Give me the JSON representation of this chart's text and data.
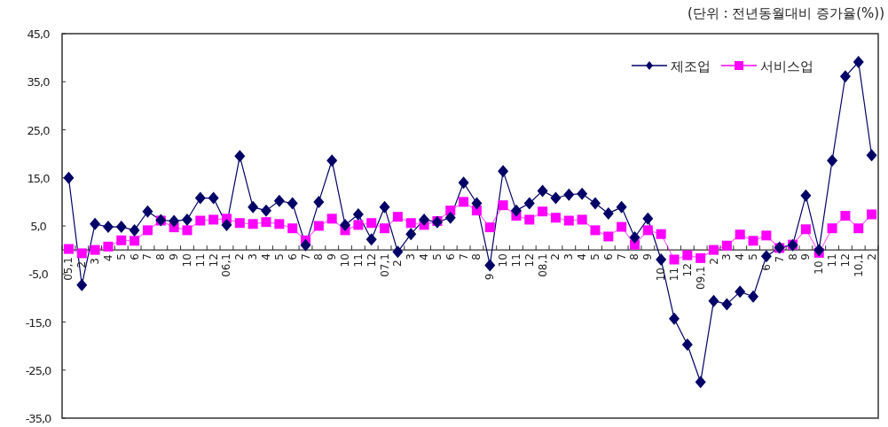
{
  "chart_data": {
    "type": "line",
    "annotations": [
      "(단위 : 전년동월대비  증가율(%))"
    ],
    "categories": [
      "05,1",
      "2",
      "3",
      "4",
      "5",
      "6",
      "7",
      "8",
      "9",
      "10",
      "11",
      "12",
      "06,1",
      "2",
      "3",
      "4",
      "5",
      "6",
      "7",
      "8",
      "9",
      "10",
      "11",
      "12",
      "07,1",
      "2",
      "3",
      "4",
      "5",
      "6",
      "7",
      "8",
      "9",
      "10",
      "11",
      "12",
      "08,1",
      "2",
      "3",
      "4",
      "5",
      "6",
      "7",
      "8",
      "9",
      "10",
      "11",
      "12",
      "09,1",
      "2",
      "3",
      "4",
      "5",
      "6",
      "7",
      "8",
      "9",
      "10",
      "11",
      "12",
      "10,1",
      "2"
    ],
    "series": [
      {
        "name": "제조업",
        "color": "#000066",
        "marker": "diamond",
        "values": [
          15.0,
          -7.3,
          5.4,
          4.8,
          4.8,
          4.1,
          8.0,
          6.2,
          6.0,
          6.3,
          10.8,
          10.8,
          5.2,
          19.5,
          8.9,
          8.2,
          10.2,
          9.7,
          1.0,
          10.0,
          18.6,
          5.2,
          7.4,
          2.2,
          8.9,
          -0.4,
          3.3,
          6.3,
          5.8,
          6.7,
          14.0,
          9.7,
          -3.2,
          16.4,
          8.2,
          9.7,
          12.3,
          10.8,
          11.5,
          11.7,
          9.7,
          7.6,
          8.9,
          2.6,
          6.5,
          -2.0,
          -14.3,
          -19.7,
          -27.5,
          -10.6,
          -11.3,
          -8.7,
          -9.7,
          -1.3,
          0.5,
          1.0,
          11.3,
          0.0,
          18.6,
          36.1,
          39.1,
          19.7
        ]
      },
      {
        "name": "서비스업",
        "color": "#ff00ff",
        "marker": "square",
        "values": [
          0.2,
          -0.7,
          0.0,
          0.7,
          2.0,
          1.9,
          4.1,
          6.1,
          4.7,
          4.1,
          6.1,
          6.3,
          6.5,
          5.6,
          5.4,
          5.8,
          5.4,
          4.5,
          2.0,
          5.0,
          6.5,
          4.1,
          5.2,
          5.6,
          4.5,
          6.9,
          5.6,
          5.2,
          6.0,
          8.2,
          10.0,
          8.2,
          4.7,
          9.3,
          7.1,
          6.3,
          8.0,
          6.7,
          6.1,
          6.3,
          4.1,
          2.8,
          4.8,
          1.1,
          4.1,
          3.3,
          -2.0,
          -1.1,
          -1.7,
          0.0,
          0.9,
          3.2,
          1.9,
          3.0,
          0.4,
          1.1,
          4.3,
          -0.6,
          4.5,
          7.1,
          4.5,
          7.4
        ]
      }
    ],
    "ylim": [
      -35,
      45
    ],
    "yticks": [
      {
        "value": 45,
        "label": "45,0"
      },
      {
        "value": 35,
        "label": "35,0"
      },
      {
        "value": 25,
        "label": "25,0"
      },
      {
        "value": 15,
        "label": "15,0"
      },
      {
        "value": 5,
        "label": "5,0"
      },
      {
        "value": -5,
        "label": "-5,0"
      },
      {
        "value": -15,
        "label": "-15,0"
      },
      {
        "value": -25,
        "label": "-25,0"
      },
      {
        "value": -35,
        "label": "-35,0"
      }
    ],
    "legend": "top right"
  }
}
